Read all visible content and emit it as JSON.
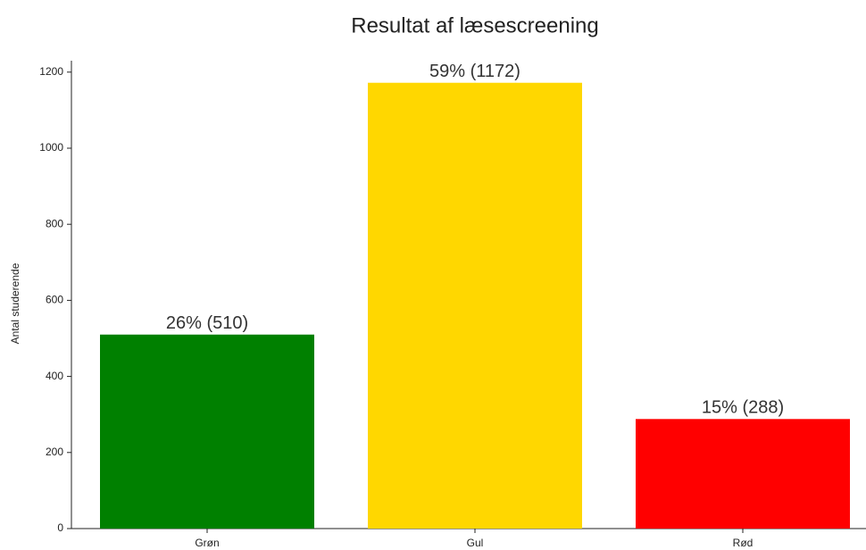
{
  "chart_data": {
    "type": "bar",
    "title": "Resultat af læsescreening",
    "ylabel": "Antal studerende",
    "categories": [
      "Grøn",
      "Gul",
      "Rød"
    ],
    "values": [
      510,
      1172,
      288
    ],
    "value_labels": [
      "26% (510)",
      "59% (1172)",
      "15% (288)"
    ],
    "colors": [
      "#008000",
      "#ffd700",
      "#ff0000"
    ],
    "ylim": [
      0,
      1230
    ],
    "yticks": [
      0,
      200,
      400,
      600,
      800,
      1000,
      1200
    ],
    "grid": false
  }
}
